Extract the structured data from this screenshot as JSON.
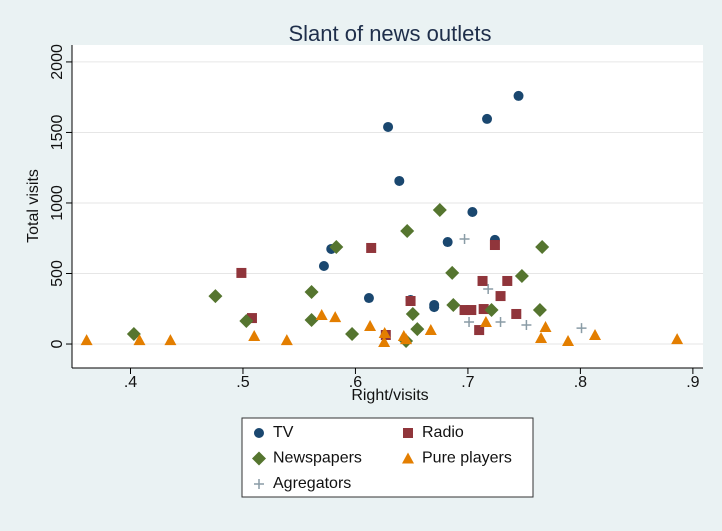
{
  "chart_data": {
    "type": "scatter",
    "title": "Slant of news outlets",
    "x_label": "Right/visits",
    "y_label": "Total visits",
    "xlim": [
      0.348,
      0.909
    ],
    "xticks": [
      {
        "value": 0.4,
        "label": ".4"
      },
      {
        "value": 0.5,
        "label": ".5"
      },
      {
        "value": 0.6,
        "label": ".6"
      },
      {
        "value": 0.7,
        "label": ".7"
      },
      {
        "value": 0.8,
        "label": ".8"
      },
      {
        "value": 0.9,
        "label": ".9"
      }
    ],
    "ylim": [
      -170,
      2120
    ],
    "yticks": [
      0,
      500,
      1000,
      1500,
      2000
    ],
    "grid": true,
    "legend": "bottom",
    "series": [
      {
        "name": "TV",
        "color": "#1a476f",
        "marker": "circle",
        "x": [
          0.5785,
          0.572,
          0.612,
          0.629,
          0.639,
          0.649,
          0.67,
          0.67,
          0.682,
          0.704,
          0.717,
          0.724,
          0.745
        ],
        "y": [
          674,
          553,
          326,
          1539,
          1156,
          312,
          277,
          262,
          723,
          936,
          1596,
          738,
          1759
        ]
      },
      {
        "name": "Radio",
        "color": "#90353b",
        "marker": "square",
        "x": [
          0.4986,
          0.508,
          0.614,
          0.627,
          0.649,
          0.697,
          0.703,
          0.71,
          0.713,
          0.714,
          0.724,
          0.729,
          0.735,
          0.743
        ],
        "y": [
          504,
          184,
          681,
          64,
          305,
          241,
          241,
          99,
          447,
          248,
          702,
          340,
          447,
          213
        ]
      },
      {
        "name": "Newspapers",
        "color": "#55752f",
        "marker": "diamond",
        "x": [
          0.403,
          0.4755,
          0.503,
          0.561,
          0.561,
          0.583,
          0.597,
          0.646,
          0.645,
          0.651,
          0.655,
          0.675,
          0.686,
          0.687,
          0.721,
          0.748,
          0.764,
          0.766
        ],
        "y": [
          71,
          340,
          163,
          369,
          170,
          688,
          71,
          801,
          21,
          213,
          106,
          950,
          504,
          277,
          241,
          482,
          241,
          688
        ]
      },
      {
        "name": "Pure players",
        "color": "#e37e00",
        "marker": "triangle",
        "x": [
          0.361,
          0.408,
          0.4355,
          0.51,
          0.539,
          0.57,
          0.582,
          0.613,
          0.6255,
          0.626,
          0.643,
          0.645,
          0.667,
          0.716,
          0.765,
          0.769,
          0.789,
          0.813,
          0.886
        ],
        "y": [
          28,
          28,
          28,
          57,
          28,
          206,
          191,
          128,
          14,
          78,
          57,
          35,
          99,
          156,
          43,
          121,
          21,
          64,
          35
        ]
      },
      {
        "name": "Agregators",
        "color": "#8a9ca6",
        "marker": "plus",
        "x": [
          0.697,
          0.701,
          0.718,
          0.729,
          0.752,
          0.801
        ],
        "y": [
          745,
          156,
          390,
          156,
          135,
          113
        ]
      }
    ]
  }
}
